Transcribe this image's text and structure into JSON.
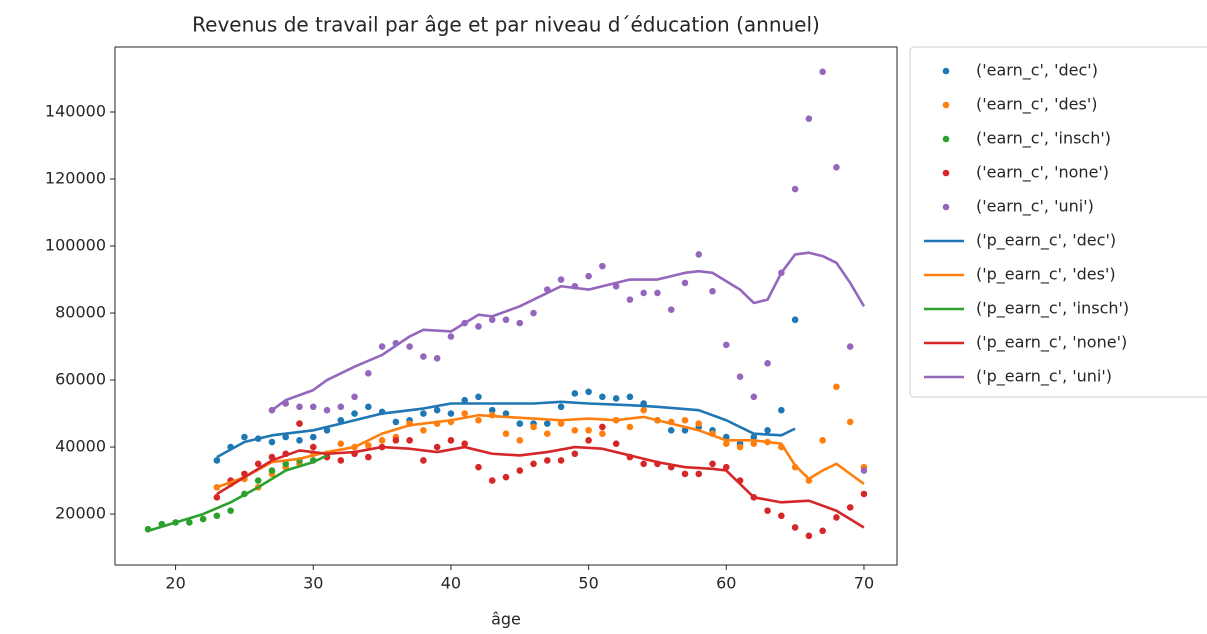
{
  "chart_data": {
    "type": "combo",
    "title": "Revenus de travail par âge et par niveau d´éducation (annuel)",
    "x_label": "âge",
    "xlim": [
      15.6,
      72.4
    ],
    "ylim": [
      4800,
      159400
    ],
    "xticks": [
      20,
      30,
      40,
      50,
      60,
      70
    ],
    "yticks": [
      20000,
      40000,
      60000,
      80000,
      100000,
      120000,
      140000
    ],
    "legend": "outside right",
    "series": [
      {
        "name": "('earn_c', 'dec')",
        "kind": "scatter",
        "color": "#1f77b4",
        "x": [
          23,
          24,
          25,
          26,
          27,
          28,
          29,
          30,
          31,
          32,
          33,
          34,
          35,
          36,
          37,
          38,
          39,
          40,
          41,
          42,
          43,
          44,
          45,
          46,
          47,
          48,
          49,
          50,
          51,
          52,
          53,
          54,
          55,
          56,
          57,
          58,
          59,
          60,
          61,
          62,
          63,
          64,
          65
        ],
        "values": [
          36000,
          40000,
          43000,
          42500,
          41500,
          43000,
          42000,
          43000,
          45000,
          48000,
          50000,
          52000,
          50500,
          47500,
          48000,
          50000,
          51000,
          50000,
          54000,
          55000,
          51000,
          50000,
          47000,
          47000,
          47000,
          52000,
          56000,
          56500,
          55000,
          54500,
          55000,
          53000,
          48000,
          45000,
          45000,
          46000,
          45000,
          43000,
          41000,
          43000,
          45000,
          51000,
          78000
        ]
      },
      {
        "name": "('earn_c', 'des')",
        "kind": "scatter",
        "color": "#ff7f0e",
        "x": [
          23,
          24,
          25,
          26,
          27,
          28,
          29,
          30,
          31,
          32,
          33,
          34,
          35,
          36,
          37,
          38,
          39,
          40,
          41,
          42,
          43,
          44,
          45,
          46,
          47,
          48,
          49,
          50,
          51,
          52,
          53,
          54,
          55,
          56,
          57,
          58,
          59,
          60,
          61,
          62,
          63,
          64,
          65,
          66,
          67,
          68,
          69,
          70
        ],
        "values": [
          28000,
          29000,
          30500,
          28000,
          32000,
          34000,
          35000,
          38000,
          38000,
          41000,
          40000,
          40500,
          42000,
          43000,
          47000,
          45000,
          47000,
          47500,
          50000,
          48000,
          49500,
          44000,
          42000,
          46000,
          44000,
          47000,
          45000,
          45000,
          44000,
          48000,
          46000,
          51000,
          48000,
          47500,
          48000,
          47000,
          44000,
          41000,
          40000,
          41000,
          41500,
          40000,
          34000,
          30000,
          42000,
          58000,
          47500,
          34000
        ]
      },
      {
        "name": "('earn_c', 'insch')",
        "kind": "scatter",
        "color": "#2ca02c",
        "x": [
          18,
          19,
          20,
          21,
          22,
          23,
          24,
          25,
          26,
          27,
          28,
          29,
          30,
          31
        ],
        "values": [
          15500,
          17000,
          17500,
          17500,
          18500,
          19500,
          21000,
          26000,
          30000,
          33000,
          35000,
          36000,
          36000,
          38000
        ]
      },
      {
        "name": "('earn_c', 'none')",
        "kind": "scatter",
        "color": "#d62728",
        "x": [
          23,
          24,
          25,
          26,
          27,
          28,
          29,
          30,
          31,
          32,
          33,
          34,
          35,
          36,
          37,
          38,
          39,
          40,
          41,
          42,
          43,
          44,
          45,
          46,
          47,
          48,
          49,
          50,
          51,
          52,
          53,
          54,
          55,
          56,
          57,
          58,
          59,
          60,
          61,
          62,
          63,
          64,
          65,
          66,
          67,
          68,
          69,
          70
        ],
        "values": [
          25000,
          30000,
          32000,
          35000,
          37000,
          38000,
          47000,
          40000,
          37000,
          36000,
          38000,
          37000,
          40000,
          42000,
          42000,
          36000,
          40000,
          42000,
          41000,
          34000,
          30000,
          31000,
          33000,
          35000,
          36000,
          36000,
          38000,
          42000,
          46000,
          41000,
          37000,
          35000,
          35000,
          34000,
          32000,
          32000,
          35000,
          34000,
          30000,
          25000,
          21000,
          19500,
          16000,
          13500,
          15000,
          19000,
          22000,
          26000
        ]
      },
      {
        "name": "('earn_c', 'uni')",
        "kind": "scatter",
        "color": "#9467bd",
        "x": [
          27,
          28,
          29,
          30,
          31,
          32,
          33,
          34,
          35,
          36,
          37,
          38,
          39,
          40,
          41,
          42,
          43,
          44,
          45,
          46,
          47,
          48,
          49,
          50,
          51,
          52,
          53,
          54,
          55,
          56,
          57,
          58,
          59,
          60,
          61,
          62,
          63,
          64,
          65,
          66,
          67,
          68,
          69,
          70
        ],
        "values": [
          51000,
          53000,
          52000,
          52000,
          51000,
          52000,
          55000,
          62000,
          70000,
          71000,
          70000,
          67000,
          66500,
          73000,
          77000,
          76000,
          78000,
          78000,
          77000,
          80000,
          87000,
          90000,
          88000,
          91000,
          94000,
          88000,
          84000,
          86000,
          86000,
          81000,
          89000,
          97500,
          86500,
          70500,
          61000,
          55000,
          65000,
          92000,
          117000,
          138000,
          152000,
          123500,
          70000,
          33000
        ]
      },
      {
        "name": "('p_earn_c', 'dec')",
        "kind": "line",
        "color": "#1f77b4",
        "x": [
          23,
          25,
          27,
          30,
          32,
          35,
          38,
          40,
          43,
          46,
          48,
          50,
          53,
          55,
          58,
          60,
          62,
          64,
          65
        ],
        "values": [
          37000,
          41500,
          43500,
          45000,
          47000,
          50000,
          51500,
          53000,
          53000,
          53000,
          53500,
          53000,
          52500,
          52000,
          51000,
          48000,
          44000,
          43500,
          45500
        ]
      },
      {
        "name": "('p_earn_c', 'des')",
        "kind": "line",
        "color": "#ff7f0e",
        "x": [
          23,
          25,
          27,
          29,
          31,
          33,
          35,
          37,
          40,
          42,
          44,
          46,
          48,
          50,
          52,
          54,
          56,
          58,
          60,
          62,
          64,
          65,
          66,
          67,
          68,
          69,
          70
        ],
        "values": [
          28000,
          31000,
          35500,
          36500,
          38500,
          40000,
          44000,
          46500,
          48000,
          49500,
          49000,
          48500,
          48000,
          48500,
          48000,
          49000,
          47000,
          45000,
          42000,
          42000,
          41000,
          34500,
          30500,
          33000,
          35000,
          32000,
          29000
        ]
      },
      {
        "name": "('p_earn_c', 'insch')",
        "kind": "line",
        "color": "#2ca02c",
        "x": [
          18,
          20,
          22,
          24,
          26,
          28,
          30,
          31
        ],
        "values": [
          15000,
          17500,
          20000,
          23500,
          28000,
          33000,
          35500,
          37500
        ]
      },
      {
        "name": "('p_earn_c', 'none')",
        "kind": "line",
        "color": "#d62728",
        "x": [
          23,
          25,
          27,
          29,
          31,
          33,
          35,
          37,
          39,
          41,
          43,
          45,
          47,
          49,
          51,
          53,
          55,
          57,
          59,
          60,
          61,
          62,
          64,
          66,
          68,
          70
        ],
        "values": [
          26000,
          31000,
          36000,
          39000,
          38000,
          38500,
          40000,
          39500,
          38500,
          40000,
          38000,
          37500,
          38500,
          40000,
          39500,
          37500,
          35500,
          34000,
          33500,
          33000,
          29000,
          25000,
          23500,
          24000,
          21000,
          16000
        ]
      },
      {
        "name": "('p_earn_c', 'uni')",
        "kind": "line",
        "color": "#9467bd",
        "x": [
          27,
          28,
          30,
          31,
          33,
          35,
          37,
          38,
          40,
          42,
          43,
          45,
          47,
          48,
          50,
          52,
          53,
          55,
          57,
          58,
          59,
          60,
          61,
          62,
          63,
          64,
          65,
          66,
          67,
          68,
          69,
          70
        ],
        "values": [
          51000,
          54000,
          57000,
          60000,
          64000,
          67500,
          73000,
          75000,
          74500,
          79500,
          79000,
          82000,
          86000,
          88000,
          87000,
          89000,
          90000,
          90000,
          92000,
          92500,
          92000,
          89500,
          87000,
          83000,
          84000,
          92000,
          97500,
          98000,
          97000,
          95000,
          89000,
          82000
        ]
      }
    ]
  }
}
